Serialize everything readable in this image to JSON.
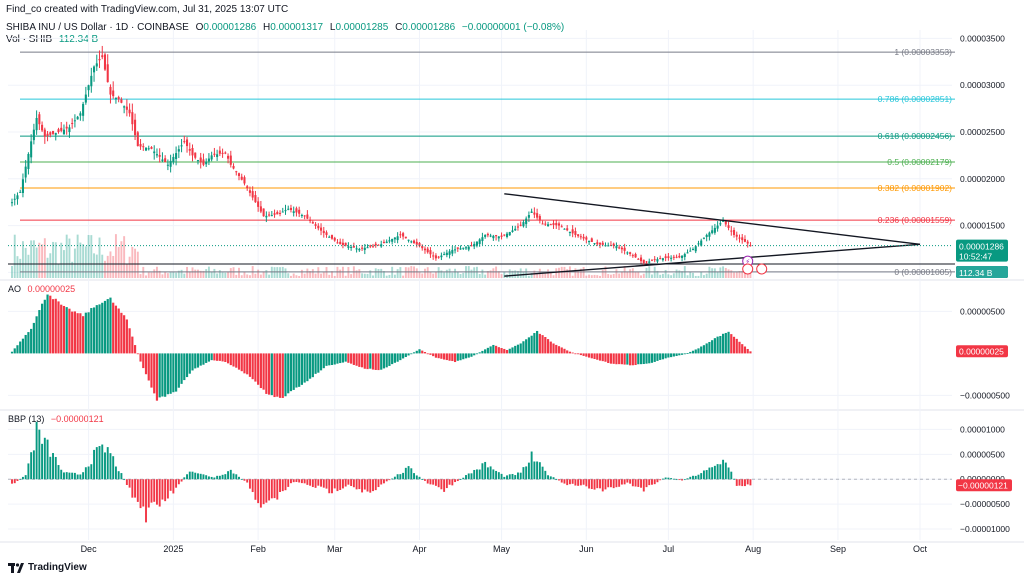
{
  "header": {
    "credit": "Find_co created with TradingView.com, Jul 31, 2025 13:07 UTC",
    "symbol": "SHIBA INU / US Dollar · 1D · COINBASE",
    "o_label": "O",
    "o_value": "0.00001286",
    "h_label": "H",
    "h_value": "0.00001317",
    "l_label": "L",
    "l_value": "0.00001285",
    "c_label": "C",
    "c_value": "0.00001286",
    "change": "−0.00000001 (−0.08%)",
    "vol_label": "Vol · SHIB",
    "vol_value": "112.34 B"
  },
  "brand": {
    "name": "TradingView",
    "logo_icon": "tradingview-logo-icon"
  },
  "colors": {
    "up": "#089981",
    "down": "#f23645",
    "grid": "#f0f3fa",
    "fib_1": "#787b86",
    "fib_0786": "#26c6da",
    "fib_0618": "#089981",
    "fib_05": "#4caf50",
    "fib_0382": "#ff9800",
    "fib_0236": "#f23645",
    "fib_0": "#787b86",
    "price_badge": "#089981",
    "countdown_badge": "#131722"
  },
  "chart_data": [
    {
      "type": "candlestick",
      "pane": "price",
      "x_ticks": [
        "Dec",
        "2025",
        "Feb",
        "Mar",
        "Apr",
        "May",
        "Jun",
        "Jul",
        "Aug",
        "Sep",
        "Oct"
      ],
      "y_ticks": [
        "0.00003500",
        "0.00003000",
        "0.00002500",
        "0.00002000",
        "0.00001500",
        "0.00001000"
      ],
      "ylim": [
        9.4e-06,
        3.59e-05
      ],
      "fib_levels": [
        {
          "ratio": 1,
          "label": "1 (0.00003353)",
          "price": 3.353e-05,
          "color_key": "fib_1"
        },
        {
          "ratio": 0.786,
          "label": "0.786 (0.00002851)",
          "price": 2.851e-05,
          "color_key": "fib_0786"
        },
        {
          "ratio": 0.618,
          "label": "0.618 (0.00002456)",
          "price": 2.456e-05,
          "color_key": "fib_0618"
        },
        {
          "ratio": 0.5,
          "label": "0.5 (0.00002179)",
          "price": 2.179e-05,
          "color_key": "fib_05"
        },
        {
          "ratio": 0.382,
          "label": "0.382 (0.00001902)",
          "price": 1.902e-05,
          "color_key": "fib_0382"
        },
        {
          "ratio": 0.236,
          "label": "0.236 (0.00001559)",
          "price": 1.559e-05,
          "color_key": "fib_0236"
        },
        {
          "ratio": 0,
          "label": "0 (0.00001005)",
          "price": 1.005e-05,
          "color_key": "fib_0"
        }
      ],
      "horizontal_line": 1.089e-05,
      "triangle": {
        "upper": [
          [
            "2025-05-02",
            1.84e-05
          ],
          [
            "2025-10-01",
            1.3e-05
          ]
        ],
        "lower": [
          [
            "2025-05-02",
            9.6e-06
          ],
          [
            "2025-10-01",
            1.3e-05
          ]
        ]
      },
      "last_price_label": "0.00001286",
      "countdown_label": "10:52:47",
      "line_label": "0.00001089",
      "volume_label": "112.34 B",
      "price_anchors": [
        [
          "2024-11-03",
          1.75e-05
        ],
        [
          "2024-11-06",
          1.86e-05
        ],
        [
          "2024-11-10",
          2.4e-05
        ],
        [
          "2024-11-12",
          2.65e-05
        ],
        [
          "2024-11-15",
          2.45e-05
        ],
        [
          "2024-11-20",
          2.5e-05
        ],
        [
          "2024-11-24",
          2.55e-05
        ],
        [
          "2024-11-28",
          2.7e-05
        ],
        [
          "2024-12-03",
          3.2e-05
        ],
        [
          "2024-12-06",
          3.3e-05
        ],
        [
          "2024-12-09",
          2.9e-05
        ],
        [
          "2024-12-12",
          2.85e-05
        ],
        [
          "2024-12-16",
          2.7e-05
        ],
        [
          "2024-12-19",
          2.35e-05
        ],
        [
          "2024-12-24",
          2.32e-05
        ],
        [
          "2024-12-30",
          2.15e-05
        ],
        [
          "2025-01-05",
          2.4e-05
        ],
        [
          "2025-01-08",
          2.25e-05
        ],
        [
          "2025-01-12",
          2.15e-05
        ],
        [
          "2025-01-15",
          2.25e-05
        ],
        [
          "2025-01-20",
          2.28e-05
        ],
        [
          "2025-01-22",
          2.15e-05
        ],
        [
          "2025-01-27",
          1.95e-05
        ],
        [
          "2025-02-03",
          1.6e-05
        ],
        [
          "2025-02-08",
          1.62e-05
        ],
        [
          "2025-02-12",
          1.68e-05
        ],
        [
          "2025-02-18",
          1.6e-05
        ],
        [
          "2025-02-25",
          1.42e-05
        ],
        [
          "2025-03-03",
          1.3e-05
        ],
        [
          "2025-03-10",
          1.25e-05
        ],
        [
          "2025-03-18",
          1.3e-05
        ],
        [
          "2025-03-25",
          1.4e-05
        ],
        [
          "2025-04-01",
          1.28e-05
        ],
        [
          "2025-04-07",
          1.15e-05
        ],
        [
          "2025-04-13",
          1.24e-05
        ],
        [
          "2025-04-20",
          1.28e-05
        ],
        [
          "2025-04-25",
          1.4e-05
        ],
        [
          "2025-05-01",
          1.38e-05
        ],
        [
          "2025-05-08",
          1.5e-05
        ],
        [
          "2025-05-12",
          1.65e-05
        ],
        [
          "2025-05-16",
          1.52e-05
        ],
        [
          "2025-05-22",
          1.5e-05
        ],
        [
          "2025-05-28",
          1.4e-05
        ],
        [
          "2025-06-05",
          1.3e-05
        ],
        [
          "2025-06-12",
          1.28e-05
        ],
        [
          "2025-06-18",
          1.18e-05
        ],
        [
          "2025-06-22",
          1.1e-05
        ],
        [
          "2025-06-28",
          1.15e-05
        ],
        [
          "2025-07-05",
          1.16e-05
        ],
        [
          "2025-07-10",
          1.25e-05
        ],
        [
          "2025-07-15",
          1.4e-05
        ],
        [
          "2025-07-21",
          1.55e-05
        ],
        [
          "2025-07-25",
          1.4e-05
        ],
        [
          "2025-07-31",
          1.29e-05
        ]
      ]
    },
    {
      "type": "histogram",
      "pane": "ao",
      "name": "AO",
      "last_value": "0.00000025",
      "y_ticks": [
        "0.00000500",
        "−0.00000500"
      ],
      "ylim": [
        -6.5e-06,
        8.5e-06
      ],
      "anchors": [
        [
          "2024-11-03",
          2e-07
        ],
        [
          "2024-11-10",
          3e-06
        ],
        [
          "2024-11-16",
          7.2e-06
        ],
        [
          "2024-11-22",
          5.5e-06
        ],
        [
          "2024-11-29",
          4.5e-06
        ],
        [
          "2024-12-05",
          6e-06
        ],
        [
          "2024-12-09",
          6.5e-06
        ],
        [
          "2024-12-15",
          4e-06
        ],
        [
          "2024-12-20",
          -1e-06
        ],
        [
          "2024-12-26",
          -5.5e-06
        ],
        [
          "2025-01-02",
          -4.5e-06
        ],
        [
          "2025-01-08",
          -2e-06
        ],
        [
          "2025-01-15",
          -8e-07
        ],
        [
          "2025-01-20",
          -1e-06
        ],
        [
          "2025-01-28",
          -2.5e-06
        ],
        [
          "2025-02-05",
          -5e-06
        ],
        [
          "2025-02-10",
          -5.2e-06
        ],
        [
          "2025-02-18",
          -3.5e-06
        ],
        [
          "2025-02-26",
          -1.5e-06
        ],
        [
          "2025-03-05",
          -1e-06
        ],
        [
          "2025-03-12",
          -1.8e-06
        ],
        [
          "2025-03-18",
          -2e-06
        ],
        [
          "2025-03-25",
          -8e-07
        ],
        [
          "2025-04-01",
          5e-07
        ],
        [
          "2025-04-07",
          -5e-07
        ],
        [
          "2025-04-14",
          -1e-06
        ],
        [
          "2025-04-20",
          -4e-07
        ],
        [
          "2025-04-28",
          1e-06
        ],
        [
          "2025-05-03",
          4e-07
        ],
        [
          "2025-05-08",
          1.2e-06
        ],
        [
          "2025-05-14",
          2.6e-06
        ],
        [
          "2025-05-20",
          1.2e-06
        ],
        [
          "2025-05-26",
          2e-07
        ],
        [
          "2025-06-02",
          -5e-07
        ],
        [
          "2025-06-10",
          -1.2e-06
        ],
        [
          "2025-06-17",
          -1.4e-06
        ],
        [
          "2025-06-24",
          -1.2e-06
        ],
        [
          "2025-07-01",
          -5e-07
        ],
        [
          "2025-07-07",
          -1e-07
        ],
        [
          "2025-07-12",
          6e-07
        ],
        [
          "2025-07-18",
          1.8e-06
        ],
        [
          "2025-07-23",
          2.6e-06
        ],
        [
          "2025-07-27",
          1.4e-06
        ],
        [
          "2025-07-31",
          2.5e-07
        ]
      ]
    },
    {
      "type": "histogram",
      "pane": "bbp",
      "name": "BBP (13)",
      "value_text": "−0.00000121",
      "last_value": "−0.00000121",
      "y_ticks": [
        "0.00001000",
        "0.00000500",
        "0.00000000",
        "−0.00000500",
        "−0.00001000"
      ],
      "ylim": [
        -1.22e-05,
        1.35e-05
      ],
      "anchors": [
        [
          "2024-11-03",
          -1e-06
        ],
        [
          "2024-11-08",
          8e-07
        ],
        [
          "2024-11-12",
          9.5e-06
        ],
        [
          "2024-11-16",
          6.5e-06
        ],
        [
          "2024-11-22",
          1.2e-06
        ],
        [
          "2024-11-28",
          1e-06
        ],
        [
          "2024-12-04",
          5.5e-06
        ],
        [
          "2024-12-08",
          6e-06
        ],
        [
          "2024-12-12",
          2e-06
        ],
        [
          "2024-12-17",
          -3e-06
        ],
        [
          "2024-12-22",
          -7e-06
        ],
        [
          "2024-12-27",
          -5e-06
        ],
        [
          "2025-01-02",
          -2e-06
        ],
        [
          "2025-01-07",
          2e-06
        ],
        [
          "2025-01-11",
          1e-06
        ],
        [
          "2025-01-16",
          4e-07
        ],
        [
          "2025-01-22",
          1.8e-06
        ],
        [
          "2025-01-28",
          -8e-07
        ],
        [
          "2025-02-03",
          -6e-06
        ],
        [
          "2025-02-08",
          -3.5e-06
        ],
        [
          "2025-02-14",
          -5e-07
        ],
        [
          "2025-02-20",
          -1.2e-06
        ],
        [
          "2025-02-28",
          -2.5e-06
        ],
        [
          "2025-03-06",
          -1e-06
        ],
        [
          "2025-03-14",
          -3e-06
        ],
        [
          "2025-03-20",
          -5e-07
        ],
        [
          "2025-03-28",
          2.2e-06
        ],
        [
          "2025-04-04",
          -8e-07
        ],
        [
          "2025-04-10",
          -2.2e-06
        ],
        [
          "2025-04-17",
          4e-07
        ],
        [
          "2025-04-25",
          3e-06
        ],
        [
          "2025-05-02",
          6e-07
        ],
        [
          "2025-05-08",
          1.2e-06
        ],
        [
          "2025-05-12",
          4.5e-06
        ],
        [
          "2025-05-18",
          1e-06
        ],
        [
          "2025-05-24",
          -1e-06
        ],
        [
          "2025-06-01",
          -1.5e-06
        ],
        [
          "2025-06-08",
          -2.2e-06
        ],
        [
          "2025-06-16",
          -8e-07
        ],
        [
          "2025-06-22",
          -2e-06
        ],
        [
          "2025-06-30",
          4e-07
        ],
        [
          "2025-07-06",
          -2e-07
        ],
        [
          "2025-07-12",
          1e-06
        ],
        [
          "2025-07-18",
          2.5e-06
        ],
        [
          "2025-07-22",
          4e-06
        ],
        [
          "2025-07-26",
          -1.2e-06
        ],
        [
          "2025-07-31",
          -1.2e-06
        ]
      ]
    }
  ]
}
